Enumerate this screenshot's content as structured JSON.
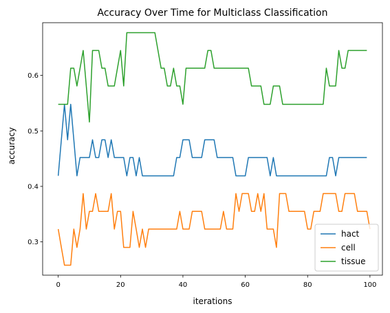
{
  "chart_data": {
    "type": "line",
    "title": "Accuracy Over Time for Multiclass Classification",
    "xlabel": "iterations",
    "ylabel": "accuracy",
    "xlim": [
      -5,
      104
    ],
    "ylim": [
      0.24,
      0.695
    ],
    "xticks": [
      0,
      20,
      40,
      60,
      80,
      100
    ],
    "yticks": [
      0.3,
      0.4,
      0.5,
      0.6
    ],
    "ytick_labels": [
      "0.3",
      "0.4",
      "0.5",
      "0.6"
    ],
    "grid": false,
    "legend_position": "lower-right",
    "series": [
      {
        "name": "hact",
        "color": "#1f77b4",
        "values": [
          0.419,
          0.484,
          0.548,
          0.484,
          0.548,
          0.484,
          0.419,
          0.452,
          0.452,
          0.452,
          0.452,
          0.484,
          0.452,
          0.452,
          0.484,
          0.484,
          0.452,
          0.484,
          0.452,
          0.452,
          0.452,
          0.452,
          0.419,
          0.452,
          0.452,
          0.419,
          0.452,
          0.419,
          0.419,
          0.419,
          0.419,
          0.419,
          0.419,
          0.419,
          0.419,
          0.419,
          0.419,
          0.419,
          0.452,
          0.452,
          0.484,
          0.484,
          0.484,
          0.452,
          0.452,
          0.452,
          0.452,
          0.484,
          0.484,
          0.484,
          0.484,
          0.452,
          0.452,
          0.452,
          0.452,
          0.452,
          0.452,
          0.419,
          0.419,
          0.419,
          0.419,
          0.452,
          0.452,
          0.452,
          0.452,
          0.452,
          0.452,
          0.452,
          0.419,
          0.452,
          0.419,
          0.419,
          0.419,
          0.419,
          0.419,
          0.419,
          0.419,
          0.419,
          0.419,
          0.419,
          0.419,
          0.419,
          0.419,
          0.419,
          0.419,
          0.419,
          0.419,
          0.452,
          0.452,
          0.419,
          0.452,
          0.452,
          0.452,
          0.452,
          0.452,
          0.452,
          0.452,
          0.452,
          0.452,
          0.452
        ]
      },
      {
        "name": "cell",
        "color": "#ff7f0e",
        "values": [
          0.323,
          0.29,
          0.258,
          0.258,
          0.258,
          0.323,
          0.29,
          0.323,
          0.387,
          0.323,
          0.355,
          0.355,
          0.387,
          0.355,
          0.355,
          0.355,
          0.355,
          0.387,
          0.323,
          0.355,
          0.355,
          0.29,
          0.29,
          0.29,
          0.355,
          0.323,
          0.29,
          0.323,
          0.29,
          0.323,
          0.323,
          0.323,
          0.323,
          0.323,
          0.323,
          0.323,
          0.323,
          0.323,
          0.323,
          0.355,
          0.323,
          0.323,
          0.323,
          0.355,
          0.355,
          0.355,
          0.355,
          0.323,
          0.323,
          0.323,
          0.323,
          0.323,
          0.323,
          0.355,
          0.323,
          0.323,
          0.323,
          0.387,
          0.355,
          0.387,
          0.387,
          0.387,
          0.355,
          0.355,
          0.387,
          0.355,
          0.387,
          0.323,
          0.323,
          0.323,
          0.29,
          0.387,
          0.387,
          0.387,
          0.355,
          0.355,
          0.355,
          0.355,
          0.355,
          0.355,
          0.323,
          0.323,
          0.355,
          0.355,
          0.355,
          0.387,
          0.387,
          0.387,
          0.387,
          0.387,
          0.355,
          0.355,
          0.387,
          0.387,
          0.387,
          0.387,
          0.355,
          0.355,
          0.355,
          0.355,
          0.323
        ]
      },
      {
        "name": "tissue",
        "color": "#2ca02c",
        "values": [
          0.548,
          0.548,
          0.548,
          0.548,
          0.613,
          0.613,
          0.581,
          0.613,
          0.645,
          0.581,
          0.516,
          0.645,
          0.645,
          0.645,
          0.613,
          0.613,
          0.581,
          0.581,
          0.581,
          0.613,
          0.645,
          0.581,
          0.677,
          0.677,
          0.677,
          0.677,
          0.677,
          0.677,
          0.677,
          0.677,
          0.677,
          0.677,
          0.645,
          0.613,
          0.613,
          0.581,
          0.581,
          0.613,
          0.581,
          0.581,
          0.548,
          0.613,
          0.613,
          0.613,
          0.613,
          0.613,
          0.613,
          0.613,
          0.645,
          0.645,
          0.613,
          0.613,
          0.613,
          0.613,
          0.613,
          0.613,
          0.613,
          0.613,
          0.613,
          0.613,
          0.613,
          0.613,
          0.581,
          0.581,
          0.581,
          0.581,
          0.548,
          0.548,
          0.548,
          0.581,
          0.581,
          0.581,
          0.548,
          0.548,
          0.548,
          0.548,
          0.548,
          0.548,
          0.548,
          0.548,
          0.548,
          0.548,
          0.548,
          0.548,
          0.548,
          0.548,
          0.613,
          0.581,
          0.581,
          0.581,
          0.645,
          0.613,
          0.613,
          0.645,
          0.645,
          0.645,
          0.645,
          0.645,
          0.645,
          0.645
        ]
      }
    ]
  }
}
